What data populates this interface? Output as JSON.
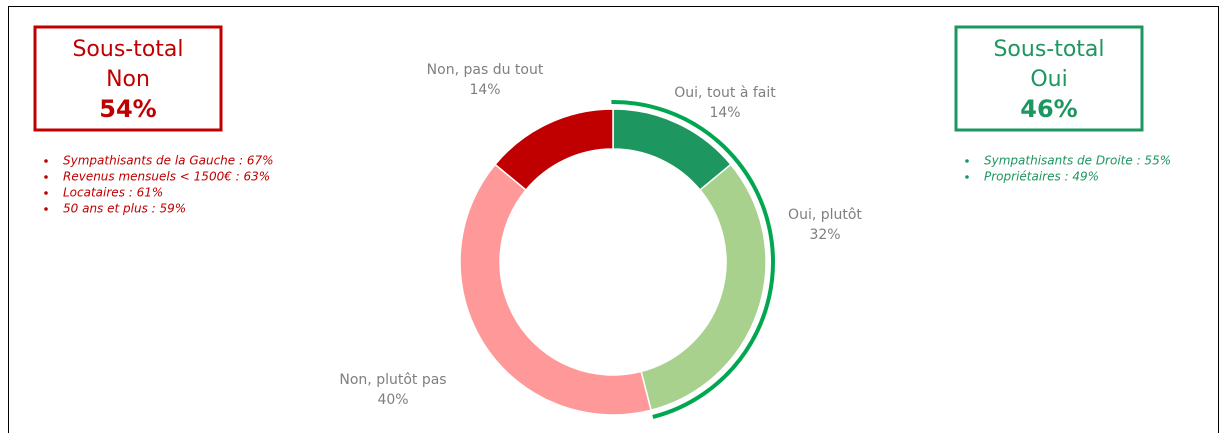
{
  "chart_data": {
    "type": "donut",
    "categories": [
      "Oui, tout à fait",
      "Oui, plutôt",
      "Non, plutôt pas",
      "Non, pas du tout"
    ],
    "values": [
      14,
      32,
      40,
      14
    ],
    "value_labels": [
      "14%",
      "32%",
      "40%",
      "14%"
    ],
    "colors": [
      "#1e9660",
      "#a9d18e",
      "#ff9999",
      "#c00000"
    ]
  },
  "subtotals": [
    {
      "title": "Sous-total",
      "name": "Non",
      "value_label": "54%",
      "color": "#c00000",
      "notes": [
        "Sympathisants de la Gauche : 67%",
        "Revenus mensuels < 1500€ : 63%",
        "Locataires : 61%",
        "50 ans et plus : 59%"
      ]
    },
    {
      "title": "Sous-total",
      "name": "Oui",
      "value_label": "46%",
      "color": "#1e9660",
      "notes": [
        "Sympathisants de Droite : 55%",
        "Propriétaires : 49%"
      ]
    }
  ]
}
